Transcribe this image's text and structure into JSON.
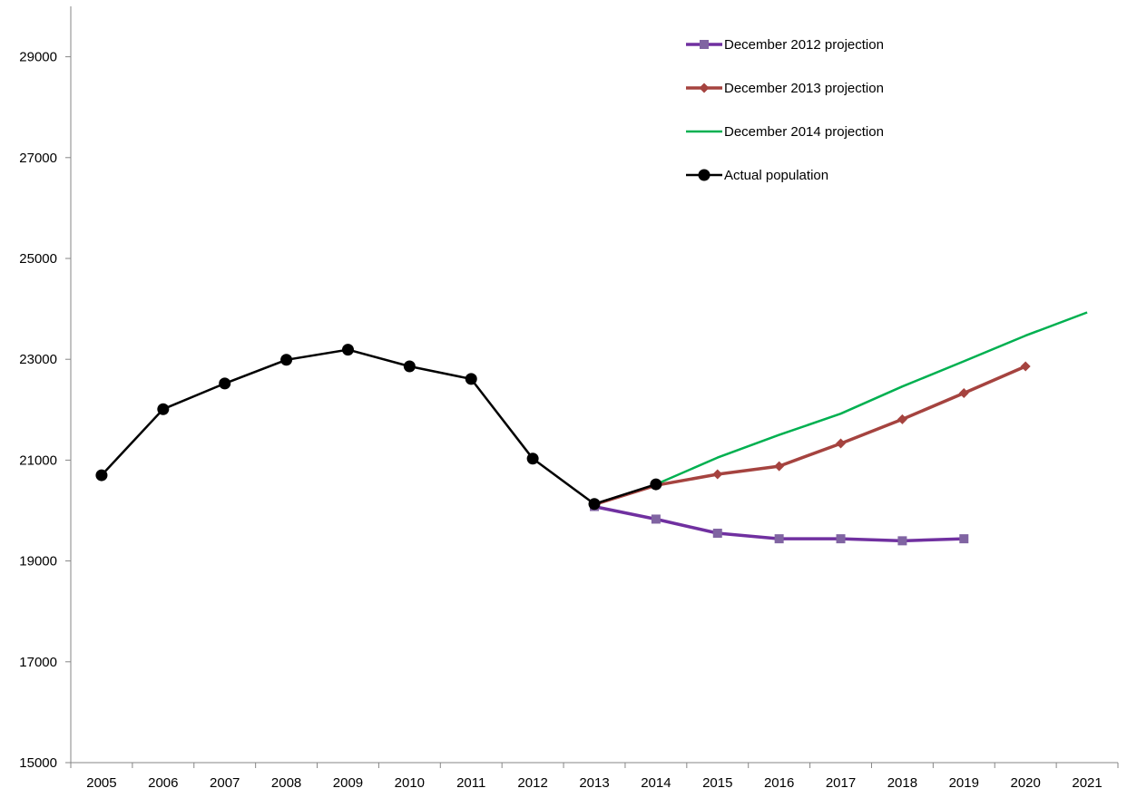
{
  "chart_data": {
    "type": "line",
    "title": "",
    "xlabel": "",
    "ylabel": "",
    "x": [
      "2005",
      "2006",
      "2007",
      "2008",
      "2009",
      "2010",
      "2011",
      "2012",
      "2013",
      "2014",
      "2015",
      "2016",
      "2017",
      "2018",
      "2019",
      "2020",
      "2021"
    ],
    "ylim": [
      15000,
      30000
    ],
    "yticks": [
      15000,
      17000,
      19000,
      21000,
      23000,
      25000,
      27000,
      29000
    ],
    "grid": false,
    "legend_position": "top-right",
    "series": [
      {
        "name": "December 2012 projection",
        "color": "#7030a0",
        "marker": "square",
        "marker_color": "#8064a2",
        "points": [
          [
            2013,
            20080
          ],
          [
            2014,
            19830
          ],
          [
            2015,
            19550
          ],
          [
            2016,
            19440
          ],
          [
            2017,
            19440
          ],
          [
            2018,
            19400
          ],
          [
            2019,
            19440
          ]
        ]
      },
      {
        "name": "December 2013 projection",
        "color": "#a5433f",
        "marker": "diamond",
        "marker_color": "#a5433f",
        "points": [
          [
            2013,
            20120
          ],
          [
            2014,
            20500
          ],
          [
            2015,
            20720
          ],
          [
            2016,
            20880
          ],
          [
            2017,
            21330
          ],
          [
            2018,
            21810
          ],
          [
            2019,
            22330
          ],
          [
            2020,
            22860
          ]
        ]
      },
      {
        "name": "December 2014 projection",
        "color": "#00b050",
        "marker": "none",
        "marker_color": "#00b050",
        "points": [
          [
            2014,
            20520
          ],
          [
            2015,
            21050
          ],
          [
            2016,
            21500
          ],
          [
            2017,
            21920
          ],
          [
            2018,
            22460
          ],
          [
            2019,
            22960
          ],
          [
            2020,
            23470
          ],
          [
            2021,
            23930
          ]
        ]
      },
      {
        "name": "Actual population",
        "color": "#000000",
        "marker": "circle",
        "marker_color": "#000000",
        "points": [
          [
            2005,
            20700
          ],
          [
            2006,
            22010
          ],
          [
            2007,
            22520
          ],
          [
            2008,
            22990
          ],
          [
            2009,
            23190
          ],
          [
            2010,
            22860
          ],
          [
            2011,
            22610
          ],
          [
            2012,
            21030
          ],
          [
            2013,
            20130
          ],
          [
            2014,
            20520
          ]
        ]
      }
    ]
  }
}
